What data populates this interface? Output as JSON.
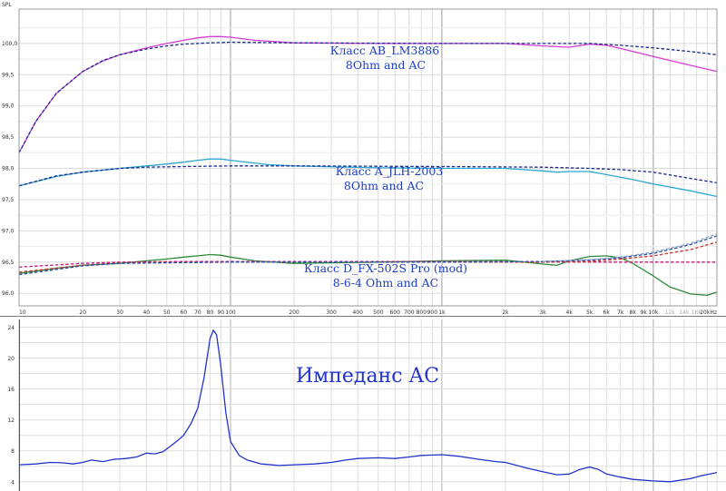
{
  "chart_data": [
    {
      "type": "line",
      "ylabel": "SPL",
      "xscale": "log",
      "xlim": [
        10,
        20000
      ],
      "ylim": [
        95.8,
        100.55
      ],
      "grid": true,
      "x_tick_labels": [
        {
          "v": 10,
          "t": "10",
          "c": "dark"
        },
        {
          "v": 20,
          "t": "20",
          "c": "dark"
        },
        {
          "v": 30,
          "t": "30",
          "c": "dark"
        },
        {
          "v": 40,
          "t": "40",
          "c": "dark"
        },
        {
          "v": 50,
          "t": "50",
          "c": "dark"
        },
        {
          "v": 60,
          "t": "60",
          "c": "dark"
        },
        {
          "v": 70,
          "t": "70",
          "c": "dark"
        },
        {
          "v": 80,
          "t": "80",
          "c": "dark"
        },
        {
          "v": 90,
          "t": "90",
          "c": "dark"
        },
        {
          "v": 100,
          "t": "100",
          "c": "dark"
        },
        {
          "v": 200,
          "t": "200",
          "c": "dark"
        },
        {
          "v": 300,
          "t": "300",
          "c": "dark"
        },
        {
          "v": 400,
          "t": "400",
          "c": "dark"
        },
        {
          "v": 500,
          "t": "500",
          "c": "dark"
        },
        {
          "v": 600,
          "t": "600",
          "c": "dark"
        },
        {
          "v": 700,
          "t": "700",
          "c": "dark"
        },
        {
          "v": 800,
          "t": "800",
          "c": "dark"
        },
        {
          "v": 900,
          "t": "900",
          "c": "dark"
        },
        {
          "v": 1000,
          "t": "1k",
          "c": "dark"
        },
        {
          "v": 2000,
          "t": "2k",
          "c": "dark"
        },
        {
          "v": 3000,
          "t": "3k",
          "c": "dark"
        },
        {
          "v": 4000,
          "t": "4k",
          "c": "dark"
        },
        {
          "v": 5000,
          "t": "5k",
          "c": "dark"
        },
        {
          "v": 6000,
          "t": "6k",
          "c": "dark"
        },
        {
          "v": 7000,
          "t": "7k",
          "c": "dark"
        },
        {
          "v": 8000,
          "t": "8k",
          "c": "dark"
        },
        {
          "v": 9000,
          "t": "9k",
          "c": "dark"
        },
        {
          "v": 10000,
          "t": "10k",
          "c": "dark"
        },
        {
          "v": 12000,
          "t": "12k",
          "c": "grey"
        },
        {
          "v": 14000,
          "t": "14k",
          "c": "grey"
        },
        {
          "v": 16000,
          "t": "16k",
          "c": "grey"
        },
        {
          "v": 20000,
          "t": "20kHz",
          "c": "dark"
        }
      ],
      "y_ticks": [
        96.0,
        96.5,
        97.0,
        97.5,
        98.0,
        98.5,
        99.0,
        99.5,
        100.0
      ],
      "y_tick_labels": [
        "96,0",
        "96,5",
        "97,0",
        "97,5",
        "98,0",
        "98,5",
        "99,0",
        "99,5",
        "100,0"
      ],
      "annotations": [
        {
          "id": "ab",
          "lines": [
            "Класс AB_LM3886",
            "8Ohm and AC"
          ]
        },
        {
          "id": "a",
          "lines": [
            "Класс A_JLH-2003",
            "8Ohm and AC"
          ]
        },
        {
          "id": "d",
          "lines": [
            "Класс D_FX-502S Pro (mod)",
            "8-6-4 Ohm and AC"
          ]
        }
      ],
      "series": [
        {
          "color": "#d63bd6",
          "dash": false,
          "x": [
            10,
            12,
            15,
            20,
            25,
            30,
            40,
            50,
            60,
            70,
            80,
            90,
            100,
            130,
            200,
            500,
            1000,
            2000,
            3000,
            4000,
            5000,
            6000,
            7000,
            10000,
            15000,
            20000
          ],
          "y": [
            98.25,
            98.75,
            99.2,
            99.55,
            99.72,
            99.82,
            99.93,
            100.0,
            100.05,
            100.09,
            100.11,
            100.11,
            100.1,
            100.05,
            100.01,
            100.0,
            100.0,
            100.0,
            99.96,
            99.94,
            99.99,
            99.97,
            99.92,
            99.79,
            99.65,
            99.55
          ]
        },
        {
          "color": "#1a2a8c",
          "dash": true,
          "x": [
            10,
            12,
            15,
            20,
            25,
            30,
            40,
            50,
            60,
            70,
            80,
            100,
            200,
            1000,
            3000,
            5000,
            7000,
            10000,
            15000,
            20000
          ],
          "y": [
            98.25,
            98.75,
            99.2,
            99.55,
            99.73,
            99.82,
            99.91,
            99.96,
            99.99,
            100.0,
            100.01,
            100.02,
            100.01,
            100.0,
            100.0,
            100.0,
            99.97,
            99.93,
            99.87,
            99.82
          ]
        },
        {
          "color": "#2ba6d1",
          "dash": false,
          "x": [
            10,
            15,
            20,
            30,
            40,
            50,
            60,
            70,
            80,
            90,
            100,
            150,
            200,
            500,
            1000,
            2000,
            3000,
            3500,
            4000,
            5000,
            6000,
            8000,
            10000,
            15000,
            20000
          ],
          "y": [
            97.72,
            97.87,
            97.94,
            98.0,
            98.04,
            98.07,
            98.1,
            98.13,
            98.15,
            98.15,
            98.13,
            98.06,
            98.04,
            98.01,
            98.0,
            98.0,
            97.96,
            97.94,
            97.95,
            97.95,
            97.9,
            97.82,
            97.75,
            97.64,
            97.55
          ]
        },
        {
          "color": "#1a2a8c",
          "dash": true,
          "x": [
            10,
            15,
            20,
            30,
            40,
            60,
            100,
            200,
            1000,
            3000,
            5000,
            7000,
            10000,
            15000,
            20000
          ],
          "y": [
            97.72,
            97.88,
            97.94,
            98.0,
            98.02,
            98.03,
            98.04,
            98.04,
            98.03,
            98.02,
            98.0,
            97.98,
            97.94,
            97.84,
            97.77
          ]
        },
        {
          "color": "#2e8a3a",
          "dash": false,
          "x": [
            10,
            15,
            20,
            30,
            40,
            50,
            60,
            70,
            80,
            90,
            100,
            130,
            200,
            500,
            1000,
            2000,
            3000,
            3500,
            4000,
            5000,
            6000,
            7000,
            8000,
            10000,
            12000,
            15000,
            18000,
            20000
          ],
          "y": [
            96.32,
            96.4,
            96.45,
            96.48,
            96.52,
            96.55,
            96.58,
            96.6,
            96.62,
            96.61,
            96.58,
            96.52,
            96.48,
            96.5,
            96.52,
            96.53,
            96.47,
            96.45,
            96.52,
            96.59,
            96.6,
            96.57,
            96.48,
            96.28,
            96.1,
            95.99,
            95.97,
            96.02
          ]
        },
        {
          "color": "#c2187a",
          "dash": true,
          "x": [
            10,
            20,
            30,
            60,
            100,
            1000,
            5000,
            10000,
            20000
          ],
          "y": [
            96.42,
            96.48,
            96.5,
            96.51,
            96.51,
            96.51,
            96.5,
            96.5,
            96.5
          ]
        },
        {
          "color": "#d23030",
          "dash": true,
          "x": [
            10,
            20,
            30,
            100,
            1000,
            3000,
            5000,
            7000,
            10000,
            15000,
            20000
          ],
          "y": [
            96.34,
            96.45,
            96.49,
            96.5,
            96.5,
            96.5,
            96.51,
            96.55,
            96.6,
            96.7,
            96.82
          ]
        },
        {
          "color": "#2a4fa8",
          "dash": true,
          "x": [
            10,
            20,
            30,
            100,
            1000,
            3000,
            5000,
            7000,
            10000,
            15000,
            20000
          ],
          "y": [
            96.3,
            96.44,
            96.48,
            96.5,
            96.5,
            96.51,
            96.53,
            96.57,
            96.64,
            96.78,
            96.92
          ]
        },
        {
          "color": "#8fa3c7",
          "dash": true,
          "x": [
            3000,
            5000,
            7000,
            10000,
            15000,
            20000
          ],
          "y": [
            96.51,
            96.54,
            96.58,
            96.66,
            96.8,
            96.95
          ]
        }
      ]
    },
    {
      "type": "line",
      "title": "Импеданс АС",
      "xscale": "log",
      "xlim": [
        10,
        20000
      ],
      "ylim": [
        2.8,
        25
      ],
      "grid": true,
      "y_ticks": [
        4,
        8,
        12,
        16,
        20,
        24
      ],
      "y_tick_labels": [
        "4",
        "8",
        "12",
        "16",
        "20",
        "24"
      ],
      "series": [
        {
          "color": "#2233cc",
          "dash": false,
          "x": [
            10,
            12,
            14,
            16,
            18,
            20,
            22,
            25,
            28,
            32,
            36,
            40,
            44,
            48,
            52,
            56,
            60,
            65,
            70,
            75,
            80,
            83,
            86,
            90,
            95,
            100,
            110,
            120,
            140,
            170,
            200,
            250,
            300,
            350,
            400,
            500,
            600,
            700,
            800,
            900,
            1000,
            1200,
            1500,
            1800,
            2000,
            2500,
            3000,
            3500,
            4000,
            4500,
            5000,
            5500,
            6000,
            7000,
            8000,
            10000,
            12000,
            15000,
            17000,
            20000
          ],
          "y": [
            6.2,
            6.3,
            6.5,
            6.45,
            6.3,
            6.5,
            6.8,
            6.6,
            6.9,
            7.0,
            7.2,
            7.7,
            7.6,
            7.9,
            8.6,
            9.3,
            10.0,
            11.5,
            13.5,
            17.5,
            22.5,
            23.6,
            23.0,
            19.0,
            13.0,
            9.2,
            7.4,
            6.8,
            6.3,
            6.1,
            6.2,
            6.3,
            6.5,
            6.8,
            7.0,
            7.1,
            7.0,
            7.2,
            7.4,
            7.45,
            7.5,
            7.3,
            6.9,
            6.6,
            6.5,
            5.8,
            5.3,
            4.9,
            5.0,
            5.6,
            5.9,
            5.6,
            5.0,
            4.6,
            4.3,
            4.1,
            4.0,
            4.4,
            4.8,
            5.2
          ]
        }
      ]
    }
  ]
}
